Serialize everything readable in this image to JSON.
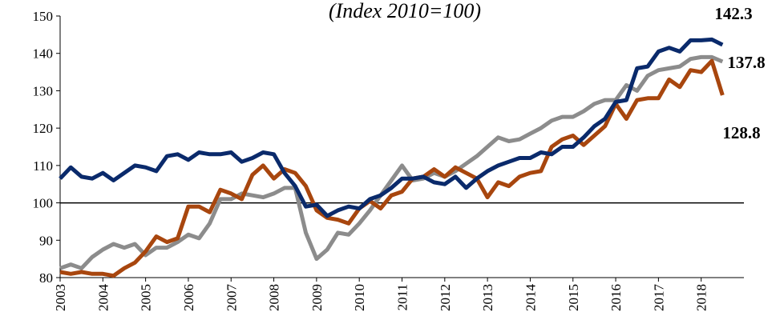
{
  "chart_data": {
    "type": "line",
    "subtitle": "(Index 2010=100)",
    "x": [
      2003,
      2003.25,
      2003.5,
      2003.75,
      2004,
      2004.25,
      2004.5,
      2004.75,
      2005,
      2005.25,
      2005.5,
      2005.75,
      2006,
      2006.25,
      2006.5,
      2006.75,
      2007,
      2007.25,
      2007.5,
      2007.75,
      2008,
      2008.25,
      2008.5,
      2008.75,
      2009,
      2009.25,
      2009.5,
      2009.75,
      2010,
      2010.25,
      2010.5,
      2010.75,
      2011,
      2011.25,
      2011.5,
      2011.75,
      2012,
      2012.25,
      2012.5,
      2012.75,
      2013,
      2013.25,
      2013.5,
      2013.75,
      2014,
      2014.25,
      2014.5,
      2014.75,
      2015,
      2015.25,
      2015.5,
      2015.75,
      2016,
      2016.25,
      2016.5,
      2016.75,
      2017,
      2017.25,
      2017.5,
      2017.75,
      2018,
      2018.25,
      2018.5
    ],
    "series": [
      {
        "color": "#8c8c8c",
        "values": [
          82.5,
          83.5,
          82.5,
          85.5,
          87.5,
          89,
          88,
          89,
          86,
          88,
          88,
          89.5,
          91.5,
          90.5,
          94.5,
          101,
          101,
          102.5,
          102,
          101.5,
          102.5,
          104,
          104,
          92,
          85,
          87.5,
          92,
          91.5,
          94.5,
          98,
          102,
          106,
          110,
          106,
          106.5,
          108,
          107,
          108.5,
          110.5,
          112.5,
          115,
          117.5,
          116.5,
          117,
          118.5,
          120,
          122,
          123,
          123,
          124.5,
          126.5,
          127.5,
          127.5,
          131.5,
          130,
          134,
          135.5,
          136,
          136.5,
          138.5,
          139,
          139,
          137.8
        ],
        "value_labels": {
          "62": "137.8"
        }
      },
      {
        "color": "#a8460e",
        "values": [
          81.5,
          81,
          81.5,
          81,
          81,
          80.5,
          82.5,
          84,
          87,
          91,
          89.5,
          90.5,
          99,
          99,
          97.5,
          103.5,
          102.5,
          101,
          107.5,
          110,
          106.5,
          109,
          108,
          104.5,
          98,
          96,
          95.5,
          94.5,
          98.5,
          100.5,
          98.5,
          102,
          103,
          106.5,
          107,
          109,
          107,
          109.5,
          108,
          106.5,
          101.5,
          105.5,
          104.5,
          107,
          108,
          108.5,
          115,
          117,
          118,
          115.5,
          118,
          120.5,
          126.5,
          122.5,
          127.5,
          128,
          128,
          133,
          131,
          135.5,
          135,
          138,
          128.8
        ],
        "value_labels": {
          "62": "128.8"
        }
      },
      {
        "color": "#0a2a6b",
        "values": [
          106.5,
          109.5,
          107,
          106.5,
          108,
          106,
          108,
          110,
          109.5,
          108.5,
          112.5,
          113,
          111.5,
          113.5,
          113,
          113,
          113.5,
          111,
          112,
          113.5,
          113,
          108,
          104.5,
          99,
          99.5,
          96.5,
          98,
          99,
          98.5,
          101,
          102,
          104,
          106.5,
          106.5,
          107,
          105.5,
          105,
          107,
          104,
          106.5,
          108.5,
          110,
          111,
          112,
          112,
          113.5,
          113,
          115,
          115,
          117.5,
          120.5,
          122.5,
          127,
          127.5,
          136,
          136.5,
          140.5,
          141.5,
          140.5,
          143.5,
          143.5,
          143.7,
          142.3
        ],
        "value_labels": {
          "62": "142.3"
        }
      }
    ],
    "xlim": [
      2003,
      2019
    ],
    "xticks": [
      2003,
      2004,
      2005,
      2006,
      2007,
      2008,
      2009,
      2010,
      2011,
      2012,
      2013,
      2014,
      2015,
      2016,
      2017,
      2018
    ],
    "ylim": [
      80,
      150
    ],
    "yticks": [
      80,
      90,
      100,
      110,
      120,
      130,
      140,
      150
    ],
    "reference_line": 100
  }
}
